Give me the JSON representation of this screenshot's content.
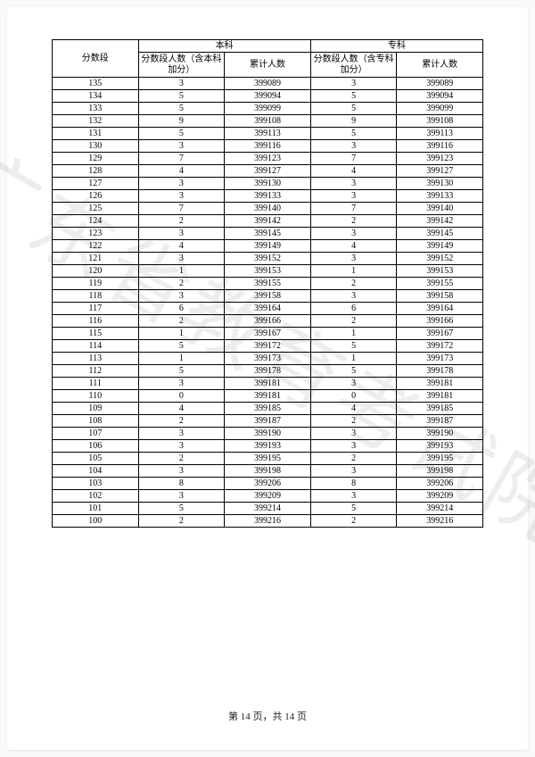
{
  "table": {
    "headers": {
      "score_range": "分数段",
      "benke": "本科",
      "zhuanke": "专科",
      "count_benke": "分数段人数（含本科加分）",
      "cumulative": "累计人数",
      "count_zhuanke": "分数段人数（含专科加分）"
    },
    "rows": [
      {
        "score": "135",
        "b1": "3",
        "b2": "399089",
        "z1": "3",
        "z2": "399089"
      },
      {
        "score": "134",
        "b1": "5",
        "b2": "399094",
        "z1": "5",
        "z2": "399094"
      },
      {
        "score": "133",
        "b1": "5",
        "b2": "399099",
        "z1": "5",
        "z2": "399099"
      },
      {
        "score": "132",
        "b1": "9",
        "b2": "399108",
        "z1": "9",
        "z2": "399108"
      },
      {
        "score": "131",
        "b1": "5",
        "b2": "399113",
        "z1": "5",
        "z2": "399113"
      },
      {
        "score": "130",
        "b1": "3",
        "b2": "399116",
        "z1": "3",
        "z2": "399116"
      },
      {
        "score": "129",
        "b1": "7",
        "b2": "399123",
        "z1": "7",
        "z2": "399123"
      },
      {
        "score": "128",
        "b1": "4",
        "b2": "399127",
        "z1": "4",
        "z2": "399127"
      },
      {
        "score": "127",
        "b1": "3",
        "b2": "399130",
        "z1": "3",
        "z2": "399130"
      },
      {
        "score": "126",
        "b1": "3",
        "b2": "399133",
        "z1": "3",
        "z2": "399133"
      },
      {
        "score": "125",
        "b1": "7",
        "b2": "399140",
        "z1": "7",
        "z2": "399140"
      },
      {
        "score": "124",
        "b1": "2",
        "b2": "399142",
        "z1": "2",
        "z2": "399142"
      },
      {
        "score": "123",
        "b1": "3",
        "b2": "399145",
        "z1": "3",
        "z2": "399145"
      },
      {
        "score": "122",
        "b1": "4",
        "b2": "399149",
        "z1": "4",
        "z2": "399149"
      },
      {
        "score": "121",
        "b1": "3",
        "b2": "399152",
        "z1": "3",
        "z2": "399152"
      },
      {
        "score": "120",
        "b1": "1",
        "b2": "399153",
        "z1": "1",
        "z2": "399153"
      },
      {
        "score": "119",
        "b1": "2",
        "b2": "399155",
        "z1": "2",
        "z2": "399155"
      },
      {
        "score": "118",
        "b1": "3",
        "b2": "399158",
        "z1": "3",
        "z2": "399158"
      },
      {
        "score": "117",
        "b1": "6",
        "b2": "399164",
        "z1": "6",
        "z2": "399164"
      },
      {
        "score": "116",
        "b1": "2",
        "b2": "399166",
        "z1": "2",
        "z2": "399166"
      },
      {
        "score": "115",
        "b1": "1",
        "b2": "399167",
        "z1": "1",
        "z2": "399167"
      },
      {
        "score": "114",
        "b1": "5",
        "b2": "399172",
        "z1": "5",
        "z2": "399172"
      },
      {
        "score": "113",
        "b1": "1",
        "b2": "399173",
        "z1": "1",
        "z2": "399173"
      },
      {
        "score": "112",
        "b1": "5",
        "b2": "399178",
        "z1": "5",
        "z2": "399178"
      },
      {
        "score": "111",
        "b1": "3",
        "b2": "399181",
        "z1": "3",
        "z2": "399181"
      },
      {
        "score": "110",
        "b1": "0",
        "b2": "399181",
        "z1": "0",
        "z2": "399181"
      },
      {
        "score": "109",
        "b1": "4",
        "b2": "399185",
        "z1": "4",
        "z2": "399185"
      },
      {
        "score": "108",
        "b1": "2",
        "b2": "399187",
        "z1": "2",
        "z2": "399187"
      },
      {
        "score": "107",
        "b1": "3",
        "b2": "399190",
        "z1": "3",
        "z2": "399190"
      },
      {
        "score": "106",
        "b1": "3",
        "b2": "399193",
        "z1": "3",
        "z2": "399193"
      },
      {
        "score": "105",
        "b1": "2",
        "b2": "399195",
        "z1": "2",
        "z2": "399195"
      },
      {
        "score": "104",
        "b1": "3",
        "b2": "399198",
        "z1": "3",
        "z2": "399198"
      },
      {
        "score": "103",
        "b1": "8",
        "b2": "399206",
        "z1": "8",
        "z2": "399206"
      },
      {
        "score": "102",
        "b1": "3",
        "b2": "399209",
        "z1": "3",
        "z2": "399209"
      },
      {
        "score": "101",
        "b1": "5",
        "b2": "399214",
        "z1": "5",
        "z2": "399214"
      },
      {
        "score": "100",
        "b1": "2",
        "b2": "399216",
        "z1": "2",
        "z2": "399216"
      }
    ]
  },
  "footer": {
    "page_label_prefix": "第 ",
    "page_current": "14",
    "page_label_mid": " 页，共 ",
    "page_total": "14",
    "page_label_suffix": " 页"
  },
  "watermark": "广东省教育考试院"
}
